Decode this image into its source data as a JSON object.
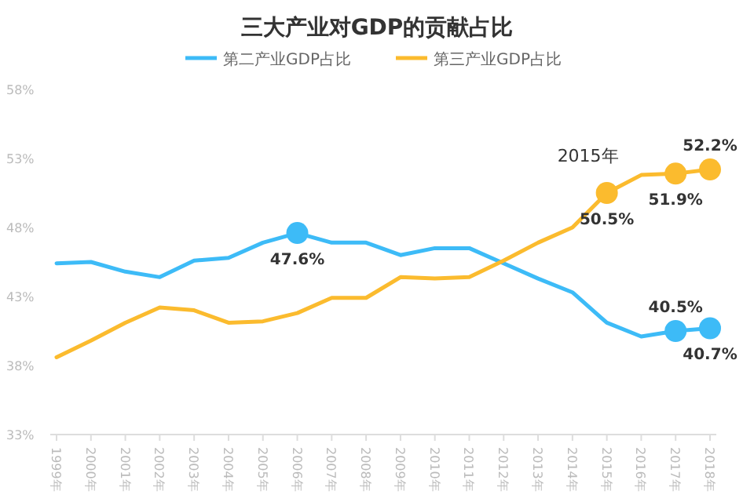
{
  "chart_data": {
    "type": "line",
    "title": "三大产业对GDP的贡献占比",
    "categories": [
      "1999年",
      "2000年",
      "2001年",
      "2002年",
      "2003年",
      "2004年",
      "2005年",
      "2006年",
      "2007年",
      "2008年",
      "2009年",
      "2010年",
      "2011年",
      "2012年",
      "2013年",
      "2014年",
      "2015年",
      "2016年",
      "2017年",
      "2018年"
    ],
    "series": [
      {
        "name": "第二产业GDP占比",
        "color": "#3dbbf7",
        "values": [
          45.4,
          45.5,
          44.8,
          44.4,
          45.6,
          45.8,
          46.9,
          47.6,
          46.9,
          46.9,
          46.0,
          46.5,
          46.5,
          45.4,
          44.3,
          43.3,
          41.1,
          40.1,
          40.5,
          40.7
        ],
        "value_labels": [
          null,
          null,
          null,
          null,
          null,
          null,
          null,
          "47.6%",
          null,
          null,
          null,
          null,
          null,
          null,
          null,
          null,
          null,
          null,
          "40.5%",
          "40.7%"
        ]
      },
      {
        "name": "第三产业GDP占比",
        "color": "#fbbb2e",
        "values": [
          38.6,
          39.8,
          41.1,
          42.2,
          42.0,
          41.1,
          41.2,
          41.8,
          42.9,
          42.9,
          44.4,
          44.3,
          44.4,
          45.6,
          46.9,
          48.0,
          50.5,
          51.8,
          51.9,
          52.2
        ],
        "value_labels": [
          null,
          null,
          null,
          null,
          null,
          null,
          null,
          null,
          null,
          null,
          null,
          null,
          null,
          null,
          null,
          null,
          "50.5%",
          null,
          "51.9%",
          "52.2%"
        ]
      }
    ],
    "annotations": [
      {
        "text": "2015年",
        "x": "2015年",
        "y": 50.5
      }
    ],
    "ylim": [
      33,
      58
    ],
    "yticks": [
      {
        "value": 33,
        "label": "33%"
      },
      {
        "value": 38,
        "label": "38%"
      },
      {
        "value": 43,
        "label": "43%"
      },
      {
        "value": 48,
        "label": "48%"
      },
      {
        "value": 53,
        "label": "53%"
      },
      {
        "value": 58,
        "label": "58%"
      }
    ],
    "legend": "top",
    "grid": false,
    "marker": "none",
    "line_style": "solid"
  }
}
